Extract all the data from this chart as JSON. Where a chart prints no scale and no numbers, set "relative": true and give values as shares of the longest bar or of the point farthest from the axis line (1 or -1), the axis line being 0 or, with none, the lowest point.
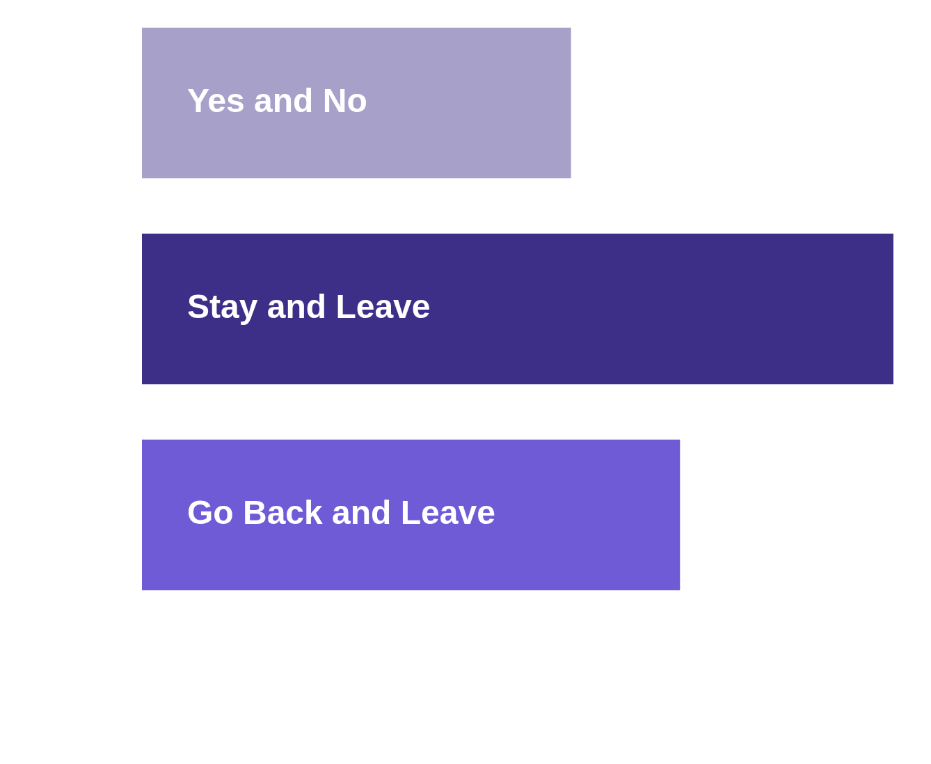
{
  "chart_data": {
    "type": "bar",
    "orientation": "horizontal",
    "relative": true,
    "categories": [
      "Yes and No",
      "Stay and Leave",
      "Go Back and Leave"
    ],
    "values": [
      0.571,
      1,
      0.716
    ],
    "colors": [
      "#a7a1ca",
      "#3d2f88",
      "#6e5bd5"
    ]
  }
}
